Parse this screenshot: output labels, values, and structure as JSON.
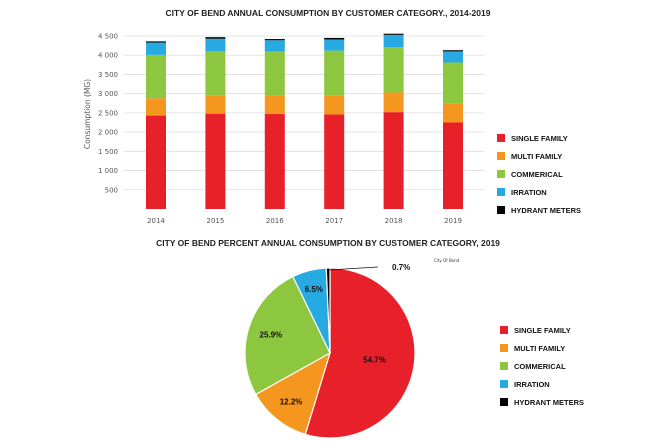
{
  "colors": {
    "single_family": "#e8202a",
    "multi_family": "#f5961e",
    "commerical": "#8dc63f",
    "irration": "#27aae1",
    "hydrant_meters": "#000000",
    "grid": "#dddddd"
  },
  "chart_data": [
    {
      "type": "bar",
      "stacked": true,
      "title": "CITY OF BEND ANNUAL CONSUMPTION BY CUSTOMER CATEGORY., 2014-2019",
      "ylabel": "Consumption (MG)",
      "xlabel": "",
      "ylim": [
        0,
        4500
      ],
      "yticks": [
        {
          "value": 500,
          "label": "500"
        },
        {
          "value": 1000,
          "label": "1 000"
        },
        {
          "value": 1500,
          "label": "1 500"
        },
        {
          "value": 2000,
          "label": "2 000"
        },
        {
          "value": 2500,
          "label": "2 500"
        },
        {
          "value": 3000,
          "label": "3 000"
        },
        {
          "value": 3500,
          "label": "3 500"
        },
        {
          "value": 4000,
          "label": "4 000"
        },
        {
          "value": 4500,
          "label": "4 500"
        }
      ],
      "grid": true,
      "legend_position": "right",
      "categories": [
        "2014",
        "2015",
        "2016",
        "2017",
        "2018",
        "2019"
      ],
      "series": [
        {
          "name": "SINGLE FAMILY",
          "color_key": "single_family",
          "values": [
            2430,
            2480,
            2470,
            2460,
            2520,
            2250
          ]
        },
        {
          "name": "MULTI FAMILY",
          "color_key": "multi_family",
          "values": [
            450,
            480,
            480,
            500,
            510,
            500
          ]
        },
        {
          "name": "COMMERICAL",
          "color_key": "commerical",
          "values": [
            1130,
            1150,
            1150,
            1160,
            1180,
            1060
          ]
        },
        {
          "name": "IRRATION",
          "color_key": "irration",
          "values": [
            320,
            320,
            290,
            290,
            320,
            290
          ]
        },
        {
          "name": "HYDRANT METERS",
          "color_key": "hydrant_meters",
          "values": [
            30,
            40,
            30,
            40,
            30,
            30
          ]
        }
      ]
    },
    {
      "type": "pie",
      "title": "CITY OF BEND PERCENT ANNUAL CONSUMPTION BY CUSTOMER CATEGORY, 2019",
      "note": "City Of Bend",
      "legend_position": "right",
      "slices": [
        {
          "name": "SINGLE FAMILY",
          "color_key": "single_family",
          "value": 54.7,
          "label": "54.7%"
        },
        {
          "name": "MULTI FAMILY",
          "color_key": "multi_family",
          "value": 12.2,
          "label": "12.2%"
        },
        {
          "name": "COMMERICAL",
          "color_key": "commerical",
          "value": 25.9,
          "label": "25.9%"
        },
        {
          "name": "IRRATION",
          "color_key": "irration",
          "value": 6.5,
          "label": "6.5%"
        },
        {
          "name": "HYDRANT METERS",
          "color_key": "hydrant_meters",
          "value": 0.7,
          "label": "0.7%"
        }
      ]
    }
  ]
}
